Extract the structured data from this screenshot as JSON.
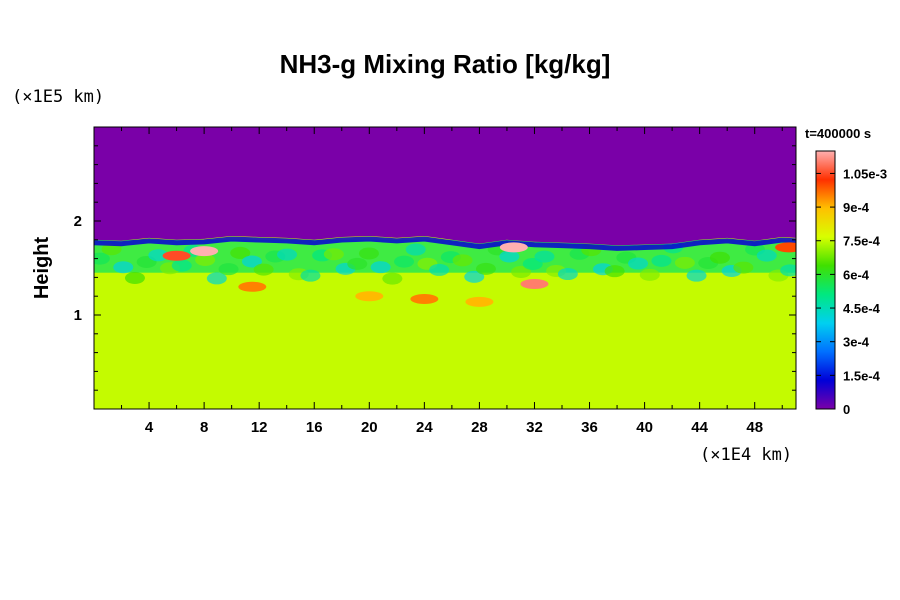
{
  "chart_data": {
    "type": "heatmap",
    "title": "NH3-g Mixing Ratio [kg/kg]",
    "ylabel": "Height",
    "xunit": "(×1E4 km)",
    "yunit": "(×1E5 km)",
    "time_label": "t=400000 s",
    "xlim": [
      0,
      51
    ],
    "ylim": [
      0,
      3
    ],
    "xticks": [
      4,
      8,
      12,
      16,
      20,
      24,
      28,
      32,
      36,
      40,
      44,
      48
    ],
    "yticks": [
      1,
      2
    ],
    "colorbar": {
      "min": 0,
      "max": 0.00115,
      "ticks": [
        "0",
        "1.5e-4",
        "3e-4",
        "4.5e-4",
        "6e-4",
        "7.5e-4",
        "9e-4",
        "1.05e-3"
      ],
      "colors": [
        "#7a00a8",
        "#0000d8",
        "#0070ff",
        "#00d0f0",
        "#00e880",
        "#40e000",
        "#d8ff00",
        "#ffc000",
        "#ff3000",
        "#ffb0b0"
      ]
    },
    "field": {
      "background_value": 0.00075,
      "upper_value": 0,
      "mixing_layer": [
        1.45,
        1.8
      ],
      "interface_height": [
        [
          0,
          1.8
        ],
        [
          2,
          1.79
        ],
        [
          4,
          1.82
        ],
        [
          6,
          1.8
        ],
        [
          8,
          1.81
        ],
        [
          10,
          1.84
        ],
        [
          12,
          1.83
        ],
        [
          14,
          1.82
        ],
        [
          16,
          1.8
        ],
        [
          18,
          1.83
        ],
        [
          20,
          1.84
        ],
        [
          22,
          1.82
        ],
        [
          24,
          1.84
        ],
        [
          26,
          1.8
        ],
        [
          28,
          1.76
        ],
        [
          30,
          1.8
        ],
        [
          32,
          1.78
        ],
        [
          34,
          1.77
        ],
        [
          36,
          1.76
        ],
        [
          38,
          1.74
        ],
        [
          40,
          1.75
        ],
        [
          42,
          1.76
        ],
        [
          44,
          1.8
        ],
        [
          46,
          1.82
        ],
        [
          48,
          1.79
        ],
        [
          50,
          1.83
        ],
        [
          51,
          1.82
        ]
      ],
      "features": [
        {
          "x": 6.0,
          "y": 1.63,
          "v": 0.00105
        },
        {
          "x": 8.0,
          "y": 1.68,
          "v": 0.00115
        },
        {
          "x": 11.5,
          "y": 1.3,
          "v": 0.00095
        },
        {
          "x": 20.0,
          "y": 1.2,
          "v": 0.0009
        },
        {
          "x": 24.0,
          "y": 1.17,
          "v": 0.00095
        },
        {
          "x": 28.0,
          "y": 1.14,
          "v": 0.0009
        },
        {
          "x": 30.5,
          "y": 1.72,
          "v": 0.00115
        },
        {
          "x": 32.0,
          "y": 1.33,
          "v": 0.0011
        },
        {
          "x": 50.5,
          "y": 1.72,
          "v": 0.001
        }
      ]
    }
  }
}
